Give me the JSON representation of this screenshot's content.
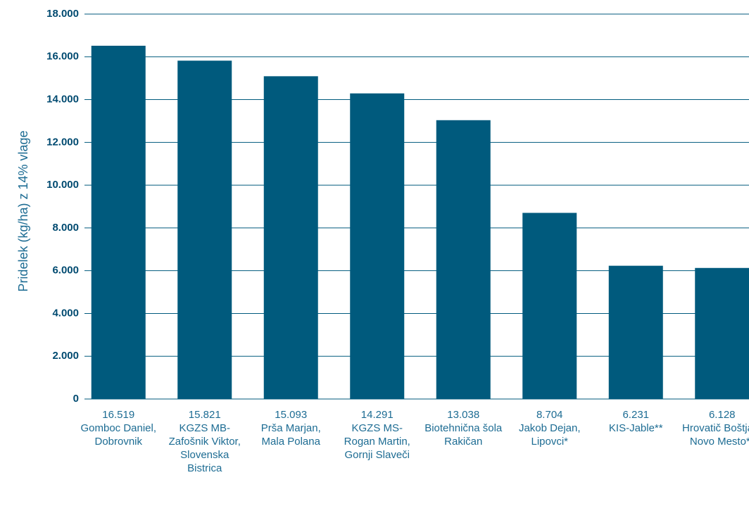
{
  "chart_data": {
    "type": "bar",
    "y_label": "Pridelek (kg/ha) z 14% vlage",
    "categories": [
      "Gomboc Daniel, Dobrovnik",
      "KGZS MB-Zafošnik Viktor, Slovenska Bistrica",
      "Prša Marjan, Mala Polana",
      "KGZS MS-Rogan Martin, Gornji Slaveči",
      "Biotehnična šola Rakičan",
      "Jakob Dejan, Lipovci*",
      "KIS-Jable**",
      "Hrovatič Boštjan, Novo Mesto**"
    ],
    "values": [
      16519,
      15821,
      15093,
      14291,
      13038,
      8704,
      6231,
      6128
    ],
    "value_labels": [
      "16.519",
      "15.821",
      "15.093",
      "14.291",
      "13.038",
      "8.704",
      "6.231",
      "6.128"
    ],
    "color": "#005a7d",
    "ylim": [
      0,
      18000
    ],
    "yticks": [
      0,
      {
        "value": 2000,
        "label": "2.000"
      },
      {
        "value": 4000,
        "label": "4.000"
      },
      {
        "value": 6000,
        "label": "6.000"
      },
      {
        "value": 8000,
        "label": "8.000"
      },
      {
        "value": 10000,
        "label": "10.000"
      },
      {
        "value": 12000,
        "label": "12.000"
      },
      {
        "value": 14000,
        "label": "14.000"
      },
      {
        "value": 16000,
        "label": "16.000"
      },
      {
        "value": 18000,
        "label": "18.000"
      }
    ],
    "grid": true
  }
}
